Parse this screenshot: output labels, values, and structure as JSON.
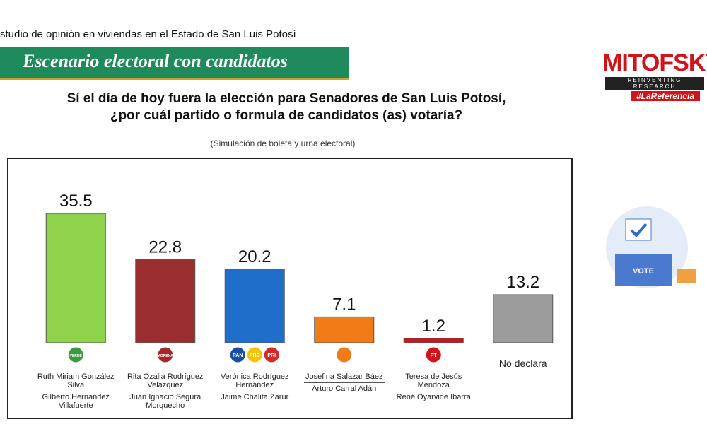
{
  "header": {
    "study": "studio de opinión en viviendas en el Estado de San Luis Potosí",
    "banner": "Escenario electoral con candidatos",
    "brand": "MITOFSKY",
    "brand_tagline": "REINVENTING RESEARCH",
    "brand_hashtag": "#LaReferencia",
    "illustration_label": "VOTE"
  },
  "chart_data": {
    "type": "bar",
    "title": [
      "Sí el día de hoy fuera la elección para Senadores de San Luis Potosí,",
      "¿por cuál partido o formula de candidatos (as) votaría?"
    ],
    "subtitle": "(Simulación de boleta y urna electoral)",
    "categories": [
      "Ruth Miriam González Silva",
      "Rita Ozalia Rodríguez Velázquez",
      "Verónica Rodríguez Hernández",
      "Josefina Salazar Báez",
      "Teresa de Jesús Mendoza",
      "No declara"
    ],
    "alternates": [
      "Gilberto Hernández Villafuerte",
      "Juan Ignacio Segura Morquecho",
      "Jaime Chalita Zarur",
      "Arturo Carral Adán",
      "René Oyarvide Ibarra",
      null
    ],
    "logos": [
      [
        {
          "label": "VERDE",
          "color": "#3c9a3c"
        }
      ],
      [
        {
          "label": "MORENA",
          "color": "#a3282b"
        }
      ],
      [
        {
          "label": "PAN",
          "color": "#1a4fa0"
        },
        {
          "label": "PRD",
          "color": "#f5c400"
        },
        {
          "label": "PRI",
          "color": "#d22a2a"
        }
      ],
      [
        {
          "color": "#f07b17"
        }
      ],
      [
        {
          "label": "PT",
          "color": "#d0141a"
        }
      ],
      null
    ],
    "values": [
      35.5,
      22.8,
      20.2,
      7.1,
      1.2,
      13.2
    ],
    "colors": [
      "#8fd24b",
      "#9b2f2f",
      "#1f6fca",
      "#f07b17",
      "#c4161c",
      "#9c9c9c"
    ]
  }
}
